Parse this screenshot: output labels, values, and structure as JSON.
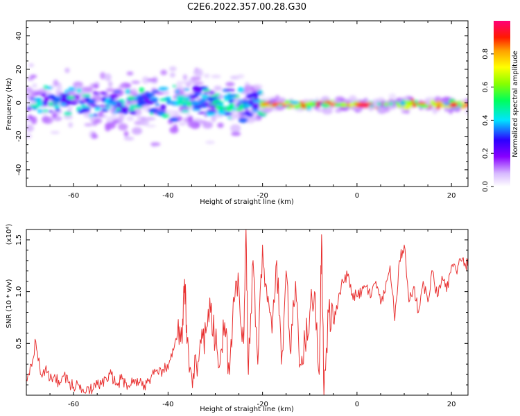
{
  "figure": {
    "title": "C2E6.2022.357.00.28.G30"
  },
  "chart_data": [
    {
      "type": "heatmap",
      "xlabel": "Height of straight line (km)",
      "ylabel": "Frequency (Hz)",
      "xlim": [
        -70,
        23.5
      ],
      "ylim": [
        -50,
        49
      ],
      "xticks": [
        -60,
        -40,
        -20,
        0,
        20
      ],
      "yticks": [
        -40,
        -20,
        0,
        20,
        40
      ],
      "grid": false,
      "colorbar": {
        "label": "Normalized spectral amplitude",
        "range": [
          0,
          1
        ],
        "ticks": [
          0.0,
          0.2,
          0.4,
          0.6,
          0.8
        ],
        "colormap": "rainbow (white-violet-blue-cyan-green-yellow-orange-red-magenta)"
      },
      "features": [
        {
          "x_range": [
            -70,
            -20
          ],
          "freq_center": 0,
          "freq_spread": 15,
          "peak_amplitude": 0.5
        },
        {
          "x_range": [
            -20,
            23.5
          ],
          "freq_center": -1,
          "freq_spread": 3,
          "peak_amplitude": 0.95
        },
        {
          "x_range": [
            -5,
            8
          ],
          "freq_center": -1,
          "freq_spread": 1,
          "peak_amplitude": 1.0
        }
      ]
    },
    {
      "type": "line",
      "xlabel": "Height of straight line (km)",
      "ylabel": "SNR (10 * v/v)",
      "y_scale_label": "(x10⁴)",
      "xlim": [
        -70,
        23.5
      ],
      "ylim": [
        0,
        1.6
      ],
      "xticks": [
        -60,
        -40,
        -20,
        0,
        20
      ],
      "yticks": [
        0.5,
        1.0,
        1.5
      ],
      "grid": false,
      "series": [
        {
          "color": "#e83030",
          "x": [
            -70,
            -69,
            -68,
            -67,
            -66,
            -65,
            -64,
            -63,
            -62,
            -61,
            -60,
            -59,
            -58,
            -57,
            -56,
            -55,
            -54,
            -53,
            -52,
            -51,
            -50,
            -49,
            -48,
            -47,
            -46,
            -45,
            -44,
            -43,
            -42,
            -41,
            -40,
            -39,
            -38,
            -37,
            -36.5,
            -36,
            -35,
            -34,
            -33,
            -32,
            -31,
            -30,
            -29,
            -28,
            -27,
            -26,
            -25,
            -24,
            -23.5,
            -23,
            -22,
            -21,
            -20,
            -19,
            -18,
            -17,
            -16,
            -15,
            -14,
            -13,
            -12,
            -11,
            -10,
            -9,
            -8,
            -7.5,
            -7,
            -6,
            -5,
            -4,
            -3,
            -2,
            -1,
            0,
            1,
            2,
            3,
            4,
            5,
            6,
            7,
            8,
            9,
            10,
            11,
            12,
            13,
            14,
            15,
            16,
            17,
            18,
            19,
            20,
            21,
            22,
            23,
            23.5
          ],
          "y": [
            0.15,
            0.3,
            0.52,
            0.2,
            0.25,
            0.15,
            0.2,
            0.1,
            0.2,
            0.12,
            0.08,
            0.1,
            0.06,
            0.08,
            0.05,
            0.1,
            0.12,
            0.15,
            0.2,
            0.1,
            0.15,
            0.12,
            0.1,
            0.15,
            0.12,
            0.1,
            0.15,
            0.2,
            0.2,
            0.25,
            0.25,
            0.45,
            0.6,
            0.5,
            1.12,
            0.5,
            0.2,
            0.3,
            0.5,
            0.6,
            0.8,
            0.5,
            0.3,
            0.7,
            0.2,
            0.9,
            1.05,
            0.5,
            1.6,
            0.2,
            1.3,
            0.3,
            1.45,
            0.9,
            0.6,
            1.3,
            0.3,
            1.2,
            0.4,
            1.1,
            0.3,
            0.5,
            0.8,
            1.0,
            0.2,
            1.55,
            0.0,
            0.8,
            0.7,
            0.9,
            1.1,
            1.15,
            0.98,
            0.95,
            1.0,
            1.05,
            0.95,
            1.1,
            0.88,
            1.0,
            1.25,
            0.72,
            1.3,
            1.45,
            0.9,
            1.05,
            0.8,
            1.1,
            0.9,
            1.2,
            0.95,
            1.15,
            1.0,
            1.25,
            1.2,
            1.3,
            1.25,
            1.3
          ]
        }
      ]
    }
  ]
}
